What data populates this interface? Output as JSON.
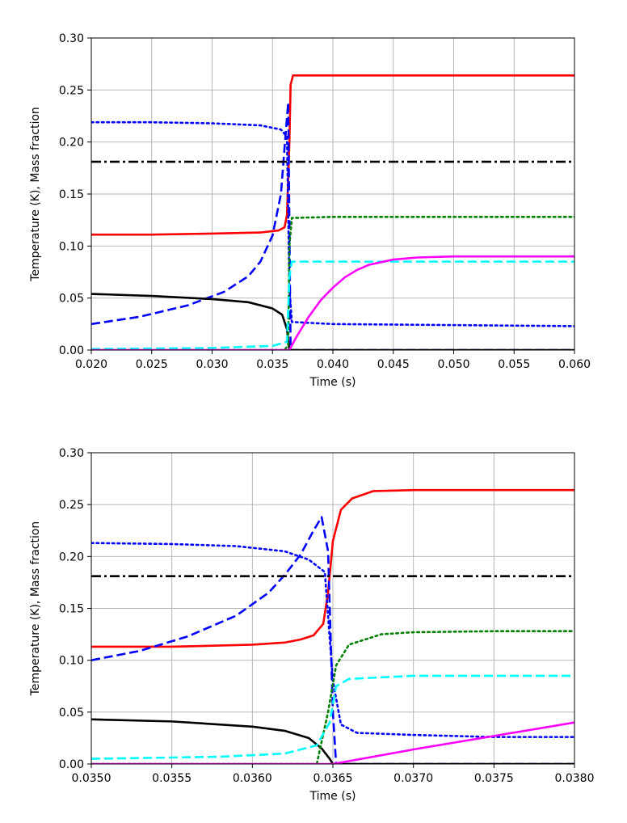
{
  "chart_data": [
    {
      "type": "line",
      "xlabel": "Time (s)",
      "ylabel": "Temperature (K), Mass fraction",
      "xlim": [
        0.02,
        0.06
      ],
      "ylim": [
        0.0,
        0.3
      ],
      "xticks": [
        "0.020",
        "0.025",
        "0.030",
        "0.035",
        "0.040",
        "0.045",
        "0.050",
        "0.055",
        "0.060"
      ],
      "yticks": [
        "0.00",
        "0.05",
        "0.10",
        "0.15",
        "0.20",
        "0.25",
        "0.30"
      ],
      "grid": true,
      "series": [
        {
          "color": "#ff0000",
          "style": "solid",
          "points": [
            [
              0.02,
              0.111
            ],
            [
              0.025,
              0.111
            ],
            [
              0.03,
              0.112
            ],
            [
              0.034,
              0.113
            ],
            [
              0.0355,
              0.115
            ],
            [
              0.036,
              0.118
            ],
            [
              0.0362,
              0.13
            ],
            [
              0.0364,
              0.2
            ],
            [
              0.0365,
              0.255
            ],
            [
              0.0367,
              0.264
            ],
            [
              0.04,
              0.264
            ],
            [
              0.05,
              0.264
            ],
            [
              0.06,
              0.264
            ]
          ]
        },
        {
          "color": "#0000ff",
          "style": "dashed",
          "points": [
            [
              0.02,
              0.025
            ],
            [
              0.024,
              0.032
            ],
            [
              0.028,
              0.043
            ],
            [
              0.031,
              0.056
            ],
            [
              0.033,
              0.071
            ],
            [
              0.034,
              0.085
            ],
            [
              0.035,
              0.11
            ],
            [
              0.0357,
              0.15
            ],
            [
              0.036,
              0.195
            ],
            [
              0.0363,
              0.238
            ],
            [
              0.0364,
              0.12
            ],
            [
              0.0365,
              0.0
            ],
            [
              0.06,
              0.0
            ]
          ]
        },
        {
          "color": "#0000ff",
          "style": "dotted",
          "points": [
            [
              0.02,
              0.219
            ],
            [
              0.025,
              0.219
            ],
            [
              0.03,
              0.218
            ],
            [
              0.034,
              0.216
            ],
            [
              0.0357,
              0.212
            ],
            [
              0.0362,
              0.205
            ],
            [
              0.0364,
              0.06
            ],
            [
              0.0366,
              0.027
            ],
            [
              0.04,
              0.025
            ],
            [
              0.05,
              0.024
            ],
            [
              0.06,
              0.023
            ]
          ]
        },
        {
          "color": "#000000",
          "style": "dashdot",
          "points": [
            [
              0.02,
              0.181
            ],
            [
              0.06,
              0.181
            ]
          ]
        },
        {
          "color": "#000000",
          "style": "solid",
          "points": [
            [
              0.02,
              0.054
            ],
            [
              0.025,
              0.052
            ],
            [
              0.03,
              0.049
            ],
            [
              0.033,
              0.046
            ],
            [
              0.035,
              0.04
            ],
            [
              0.0358,
              0.034
            ],
            [
              0.0362,
              0.02
            ],
            [
              0.0364,
              0.0
            ],
            [
              0.06,
              0.0
            ]
          ]
        },
        {
          "color": "#008000",
          "style": "dotted",
          "points": [
            [
              0.02,
              0.0
            ],
            [
              0.036,
              0.0
            ],
            [
              0.0363,
              0.005
            ],
            [
              0.0364,
              0.1
            ],
            [
              0.0366,
              0.127
            ],
            [
              0.04,
              0.128
            ],
            [
              0.05,
              0.128
            ],
            [
              0.06,
              0.128
            ]
          ]
        },
        {
          "color": "#00ffff",
          "style": "dashed",
          "points": [
            [
              0.02,
              0.001
            ],
            [
              0.03,
              0.002
            ],
            [
              0.035,
              0.004
            ],
            [
              0.0362,
              0.008
            ],
            [
              0.0364,
              0.07
            ],
            [
              0.0366,
              0.085
            ],
            [
              0.04,
              0.085
            ],
            [
              0.05,
              0.085
            ],
            [
              0.06,
              0.085
            ]
          ]
        },
        {
          "color": "#ff00ff",
          "style": "solid",
          "points": [
            [
              0.02,
              0.0
            ],
            [
              0.0364,
              0.0
            ],
            [
              0.037,
              0.013
            ],
            [
              0.038,
              0.032
            ],
            [
              0.039,
              0.048
            ],
            [
              0.04,
              0.06
            ],
            [
              0.041,
              0.07
            ],
            [
              0.042,
              0.077
            ],
            [
              0.043,
              0.082
            ],
            [
              0.045,
              0.087
            ],
            [
              0.047,
              0.089
            ],
            [
              0.05,
              0.09
            ],
            [
              0.055,
              0.09
            ],
            [
              0.06,
              0.09
            ]
          ]
        }
      ]
    },
    {
      "type": "line",
      "xlabel": "Time (s)",
      "ylabel": "Temperature (K), Mass fraction",
      "xlim": [
        0.035,
        0.038
      ],
      "ylim": [
        0.0,
        0.3
      ],
      "xticks": [
        "0.0350",
        "0.0355",
        "0.0360",
        "0.0365",
        "0.0370",
        "0.0375",
        "0.0380"
      ],
      "yticks": [
        "0.00",
        "0.05",
        "0.10",
        "0.15",
        "0.20",
        "0.25",
        "0.30"
      ],
      "grid": true,
      "series": [
        {
          "color": "#ff0000",
          "style": "solid",
          "points": [
            [
              0.035,
              0.113
            ],
            [
              0.0355,
              0.113
            ],
            [
              0.036,
              0.115
            ],
            [
              0.0362,
              0.117
            ],
            [
              0.0363,
              0.12
            ],
            [
              0.03638,
              0.124
            ],
            [
              0.03644,
              0.135
            ],
            [
              0.03647,
              0.165
            ],
            [
              0.0365,
              0.215
            ],
            [
              0.03655,
              0.245
            ],
            [
              0.03662,
              0.256
            ],
            [
              0.03675,
              0.263
            ],
            [
              0.037,
              0.264
            ],
            [
              0.0375,
              0.264
            ],
            [
              0.038,
              0.264
            ]
          ]
        },
        {
          "color": "#0000ff",
          "style": "dashed",
          "points": [
            [
              0.035,
              0.1
            ],
            [
              0.0353,
              0.109
            ],
            [
              0.0356,
              0.123
            ],
            [
              0.0359,
              0.143
            ],
            [
              0.0361,
              0.165
            ],
            [
              0.0362,
              0.182
            ],
            [
              0.0363,
              0.202
            ],
            [
              0.03638,
              0.225
            ],
            [
              0.03643,
              0.238
            ],
            [
              0.03647,
              0.205
            ],
            [
              0.0365,
              0.05
            ],
            [
              0.03652,
              0.0
            ],
            [
              0.038,
              0.0
            ]
          ]
        },
        {
          "color": "#0000ff",
          "style": "dotted",
          "points": [
            [
              0.035,
              0.213
            ],
            [
              0.0355,
              0.212
            ],
            [
              0.0359,
              0.21
            ],
            [
              0.0362,
              0.205
            ],
            [
              0.03635,
              0.197
            ],
            [
              0.03645,
              0.185
            ],
            [
              0.0365,
              0.08
            ],
            [
              0.03655,
              0.038
            ],
            [
              0.03665,
              0.03
            ],
            [
              0.037,
              0.028
            ],
            [
              0.0375,
              0.026
            ],
            [
              0.038,
              0.026
            ]
          ]
        },
        {
          "color": "#000000",
          "style": "dashdot",
          "points": [
            [
              0.035,
              0.181
            ],
            [
              0.038,
              0.181
            ]
          ]
        },
        {
          "color": "#000000",
          "style": "solid",
          "points": [
            [
              0.035,
              0.043
            ],
            [
              0.0355,
              0.041
            ],
            [
              0.036,
              0.036
            ],
            [
              0.0362,
              0.032
            ],
            [
              0.03635,
              0.025
            ],
            [
              0.03643,
              0.015
            ],
            [
              0.03648,
              0.005
            ],
            [
              0.0365,
              0.0
            ],
            [
              0.038,
              0.0
            ]
          ]
        },
        {
          "color": "#008000",
          "style": "dotted",
          "points": [
            [
              0.035,
              0.0
            ],
            [
              0.0364,
              0.0
            ],
            [
              0.03647,
              0.05
            ],
            [
              0.03652,
              0.095
            ],
            [
              0.0366,
              0.115
            ],
            [
              0.0368,
              0.125
            ],
            [
              0.037,
              0.127
            ],
            [
              0.0375,
              0.128
            ],
            [
              0.038,
              0.128
            ]
          ]
        },
        {
          "color": "#00ffff",
          "style": "dashed",
          "points": [
            [
              0.035,
              0.005
            ],
            [
              0.0358,
              0.007
            ],
            [
              0.0362,
              0.01
            ],
            [
              0.0364,
              0.018
            ],
            [
              0.03648,
              0.04
            ],
            [
              0.03652,
              0.075
            ],
            [
              0.0366,
              0.082
            ],
            [
              0.037,
              0.085
            ],
            [
              0.038,
              0.085
            ]
          ]
        },
        {
          "color": "#ff00ff",
          "style": "solid",
          "points": [
            [
              0.035,
              0.0
            ],
            [
              0.0365,
              0.0
            ],
            [
              0.037,
              0.014
            ],
            [
              0.0375,
              0.027
            ],
            [
              0.038,
              0.04
            ]
          ]
        }
      ]
    }
  ]
}
